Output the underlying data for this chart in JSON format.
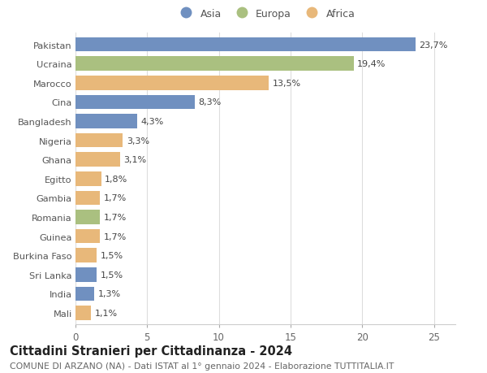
{
  "countries": [
    "Pakistan",
    "Ucraina",
    "Marocco",
    "Cina",
    "Bangladesh",
    "Nigeria",
    "Ghana",
    "Egitto",
    "Gambia",
    "Romania",
    "Guinea",
    "Burkina Faso",
    "Sri Lanka",
    "India",
    "Mali"
  ],
  "values": [
    23.7,
    19.4,
    13.5,
    8.3,
    4.3,
    3.3,
    3.1,
    1.8,
    1.7,
    1.7,
    1.7,
    1.5,
    1.5,
    1.3,
    1.1
  ],
  "labels": [
    "23,7%",
    "19,4%",
    "13,5%",
    "8,3%",
    "4,3%",
    "3,3%",
    "3,1%",
    "1,8%",
    "1,7%",
    "1,7%",
    "1,7%",
    "1,5%",
    "1,5%",
    "1,3%",
    "1,1%"
  ],
  "continents": [
    "Asia",
    "Europa",
    "Africa",
    "Asia",
    "Asia",
    "Africa",
    "Africa",
    "Africa",
    "Africa",
    "Europa",
    "Africa",
    "Africa",
    "Asia",
    "Asia",
    "Africa"
  ],
  "colors": {
    "Asia": "#7090c0",
    "Europa": "#aac080",
    "Africa": "#e8b87a"
  },
  "legend_labels": [
    "Asia",
    "Europa",
    "Africa"
  ],
  "title": "Cittadini Stranieri per Cittadinanza - 2024",
  "subtitle": "COMUNE DI ARZANO (NA) - Dati ISTAT al 1° gennaio 2024 - Elaborazione TUTTITALIA.IT",
  "xlim": [
    0,
    26.5
  ],
  "xticks": [
    0,
    5,
    10,
    15,
    20,
    25
  ],
  "background_color": "#ffffff",
  "grid_color": "#dddddd",
  "bar_height": 0.75,
  "label_fontsize": 8.0,
  "ytick_fontsize": 8.2,
  "xtick_fontsize": 8.5,
  "legend_fontsize": 9.0,
  "title_fontsize": 10.5,
  "subtitle_fontsize": 7.8
}
